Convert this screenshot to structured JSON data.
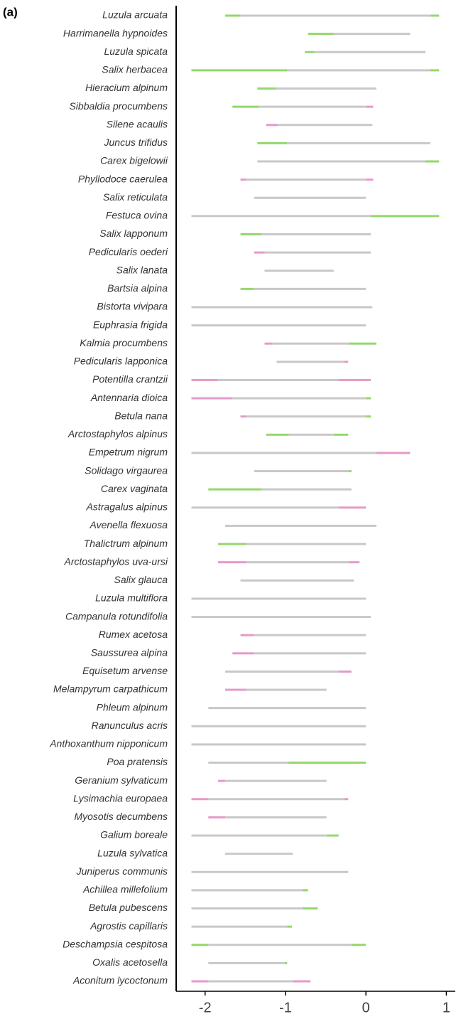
{
  "chart_data": {
    "type": "range",
    "panel_label": "(a)",
    "colors": {
      "base": "#c8c8c8",
      "gain": "#93d86a",
      "loss": "#e59ac8"
    },
    "xlim": [
      -2.36,
      1.12
    ],
    "xticks": [
      -2,
      -1,
      0,
      1
    ],
    "rows": [
      {
        "name": "Luzula arcuata",
        "edges": [
          -1.75,
          -1.56,
          0.8,
          0.91
        ],
        "kinds": [
          "gain",
          "base",
          "gain"
        ]
      },
      {
        "name": "Harrimanella hypnoides",
        "edges": [
          -0.72,
          -0.4,
          0.55
        ],
        "kinds": [
          "gain",
          "base"
        ]
      },
      {
        "name": "Luzula spicata",
        "edges": [
          -0.76,
          -0.64,
          0.74
        ],
        "kinds": [
          "gain",
          "base"
        ]
      },
      {
        "name": "Salix herbacea",
        "edges": [
          -2.17,
          -0.98,
          0.8,
          0.91
        ],
        "kinds": [
          "gain",
          "base",
          "gain"
        ]
      },
      {
        "name": "Hieracium alpinum",
        "edges": [
          -1.35,
          -1.12,
          0.13
        ],
        "kinds": [
          "gain",
          "base"
        ]
      },
      {
        "name": "Sibbaldia procumbens",
        "edges": [
          -1.66,
          -1.33,
          0.0,
          0.09
        ],
        "kinds": [
          "gain",
          "base",
          "loss"
        ]
      },
      {
        "name": "Silene acaulis",
        "edges": [
          -1.24,
          -1.1,
          0.08
        ],
        "kinds": [
          "loss",
          "base"
        ]
      },
      {
        "name": "Juncus trifidus",
        "edges": [
          -1.35,
          -0.98,
          0.8
        ],
        "kinds": [
          "gain",
          "base"
        ]
      },
      {
        "name": "Carex bigelowii",
        "edges": [
          -1.35,
          0.74,
          0.91
        ],
        "kinds": [
          "base",
          "gain"
        ]
      },
      {
        "name": "Phyllodoce caerulea",
        "edges": [
          -1.56,
          -1.49,
          0.0,
          0.09
        ],
        "kinds": [
          "loss",
          "base",
          "loss"
        ]
      },
      {
        "name": "Salix reticulata",
        "edges": [
          -1.39,
          0.0
        ],
        "kinds": [
          "base"
        ]
      },
      {
        "name": "Festuca ovina",
        "edges": [
          -2.17,
          0.06,
          0.91
        ],
        "kinds": [
          "base",
          "gain"
        ]
      },
      {
        "name": "Salix lapponum",
        "edges": [
          -1.56,
          -1.3,
          0.06
        ],
        "kinds": [
          "gain",
          "base"
        ]
      },
      {
        "name": "Pedicularis oederi",
        "edges": [
          -1.39,
          -1.26,
          0.06
        ],
        "kinds": [
          "loss",
          "base"
        ]
      },
      {
        "name": "Salix lanata",
        "edges": [
          -1.26,
          -0.4
        ],
        "kinds": [
          "base"
        ]
      },
      {
        "name": "Bartsia alpina",
        "edges": [
          -1.56,
          -1.39,
          0.0
        ],
        "kinds": [
          "gain",
          "base"
        ]
      },
      {
        "name": "Bistorta vivipara",
        "edges": [
          -2.17,
          0.08
        ],
        "kinds": [
          "base"
        ]
      },
      {
        "name": "Euphrasia frigida",
        "edges": [
          -2.17,
          0.0
        ],
        "kinds": [
          "base"
        ]
      },
      {
        "name": "Kalmia procumbens",
        "edges": [
          -1.26,
          -1.16,
          -0.21,
          0.13
        ],
        "kinds": [
          "loss",
          "base",
          "gain"
        ]
      },
      {
        "name": "Pedicularis lapponica",
        "edges": [
          -1.11,
          -0.27,
          -0.22
        ],
        "kinds": [
          "base",
          "loss"
        ]
      },
      {
        "name": "Potentilla crantzii",
        "edges": [
          -2.17,
          -1.84,
          -0.34,
          0.06
        ],
        "kinds": [
          "loss",
          "base",
          "loss"
        ]
      },
      {
        "name": "Antennaria dioica",
        "edges": [
          -2.17,
          -1.66,
          0.0,
          0.06
        ],
        "kinds": [
          "loss",
          "base",
          "gain"
        ]
      },
      {
        "name": "Betula nana",
        "edges": [
          -1.56,
          -1.49,
          0.0,
          0.06
        ],
        "kinds": [
          "loss",
          "base",
          "gain"
        ]
      },
      {
        "name": "Arctostaphylos alpinus",
        "edges": [
          -1.24,
          -0.96,
          -0.4,
          -0.22
        ],
        "kinds": [
          "gain",
          "base",
          "gain"
        ]
      },
      {
        "name": "Empetrum nigrum",
        "edges": [
          -2.17,
          0.13,
          0.55
        ],
        "kinds": [
          "base",
          "loss"
        ]
      },
      {
        "name": "Solidago virgaurea",
        "edges": [
          -1.39,
          -0.21,
          -0.18
        ],
        "kinds": [
          "base",
          "gain"
        ]
      },
      {
        "name": "Carex vaginata",
        "edges": [
          -1.96,
          -1.3,
          -0.18
        ],
        "kinds": [
          "gain",
          "base"
        ]
      },
      {
        "name": "Astragalus alpinus",
        "edges": [
          -2.17,
          -0.34,
          0.0
        ],
        "kinds": [
          "base",
          "loss"
        ]
      },
      {
        "name": "Avenella flexuosa",
        "edges": [
          -1.75,
          0.13
        ],
        "kinds": [
          "base"
        ]
      },
      {
        "name": "Thalictrum alpinum",
        "edges": [
          -1.84,
          -1.49,
          0.0
        ],
        "kinds": [
          "gain",
          "base"
        ]
      },
      {
        "name": "Arctostaphylos uva-ursi",
        "edges": [
          -1.84,
          -1.49,
          -0.21,
          -0.08
        ],
        "kinds": [
          "loss",
          "base",
          "loss"
        ]
      },
      {
        "name": "Salix glauca",
        "edges": [
          -1.56,
          -0.15
        ],
        "kinds": [
          "base"
        ]
      },
      {
        "name": "Luzula multiflora",
        "edges": [
          -2.17,
          0.0
        ],
        "kinds": [
          "base"
        ]
      },
      {
        "name": "Campanula rotundifolia",
        "edges": [
          -2.17,
          0.06
        ],
        "kinds": [
          "base"
        ]
      },
      {
        "name": "Rumex acetosa",
        "edges": [
          -1.56,
          -1.39,
          0.0
        ],
        "kinds": [
          "loss",
          "base"
        ]
      },
      {
        "name": "Saussurea alpina",
        "edges": [
          -1.66,
          -1.39,
          0.0
        ],
        "kinds": [
          "loss",
          "base"
        ]
      },
      {
        "name": "Equisetum arvense",
        "edges": [
          -1.75,
          -0.34,
          -0.18
        ],
        "kinds": [
          "base",
          "loss"
        ]
      },
      {
        "name": "Melampyrum carpathicum",
        "edges": [
          -1.75,
          -1.49,
          -0.49
        ],
        "kinds": [
          "loss",
          "base"
        ]
      },
      {
        "name": "Phleum alpinum",
        "edges": [
          -1.96,
          0.0
        ],
        "kinds": [
          "base"
        ]
      },
      {
        "name": "Ranunculus acris",
        "edges": [
          -2.17,
          0.0
        ],
        "kinds": [
          "base"
        ]
      },
      {
        "name": "Anthoxanthum nipponicum",
        "edges": [
          -2.17,
          0.0
        ],
        "kinds": [
          "base"
        ]
      },
      {
        "name": "Poa pratensis",
        "edges": [
          -1.96,
          -0.96,
          0.0
        ],
        "kinds": [
          "base",
          "gain"
        ]
      },
      {
        "name": "Geranium sylvaticum",
        "edges": [
          -1.84,
          -1.75,
          -0.49
        ],
        "kinds": [
          "loss",
          "base"
        ]
      },
      {
        "name": "Lysimachia europaea",
        "edges": [
          -2.17,
          -1.96,
          -0.27,
          -0.22
        ],
        "kinds": [
          "loss",
          "base",
          "loss"
        ]
      },
      {
        "name": "Myosotis decumbens",
        "edges": [
          -1.96,
          -1.75,
          -0.49
        ],
        "kinds": [
          "loss",
          "base"
        ]
      },
      {
        "name": "Galium boreale",
        "edges": [
          -2.17,
          -0.49,
          -0.34
        ],
        "kinds": [
          "base",
          "gain"
        ]
      },
      {
        "name": "Luzula sylvatica",
        "edges": [
          -1.75,
          -0.91
        ],
        "kinds": [
          "base"
        ]
      },
      {
        "name": "Juniperus communis",
        "edges": [
          -2.17,
          -0.22
        ],
        "kinds": [
          "base"
        ]
      },
      {
        "name": "Achillea millefolium",
        "edges": [
          -2.17,
          -0.79,
          -0.72
        ],
        "kinds": [
          "base",
          "gain"
        ]
      },
      {
        "name": "Betula pubescens",
        "edges": [
          -2.17,
          -0.79,
          -0.6
        ],
        "kinds": [
          "base",
          "gain"
        ]
      },
      {
        "name": "Agrostis capillaris",
        "edges": [
          -2.17,
          -0.98,
          -0.92
        ],
        "kinds": [
          "base",
          "gain"
        ]
      },
      {
        "name": "Deschampsia cespitosa",
        "edges": [
          -2.17,
          -1.96,
          -0.18,
          0.0
        ],
        "kinds": [
          "gain",
          "base",
          "gain"
        ]
      },
      {
        "name": "Oxalis acetosella",
        "edges": [
          -1.96,
          -1.01,
          -0.98
        ],
        "kinds": [
          "base",
          "gain"
        ]
      },
      {
        "name": "Aconitum lycoctonum",
        "edges": [
          -2.17,
          -1.96,
          -0.91,
          -0.69
        ],
        "kinds": [
          "loss",
          "base",
          "loss"
        ]
      }
    ]
  }
}
